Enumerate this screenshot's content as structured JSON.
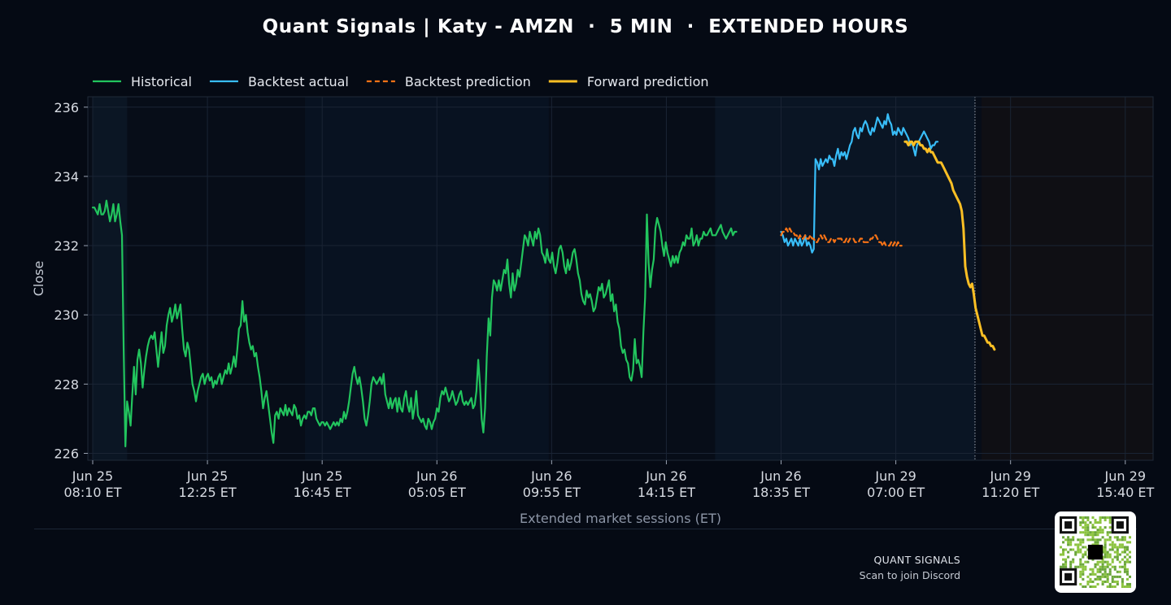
{
  "title": "Quant Signals | Katy - AMZN  ·  5 MIN  ·  EXTENDED HOURS",
  "footer": {
    "brand": "QUANT SIGNALS",
    "subtitle": "Scan to join Discord"
  },
  "colors": {
    "background": "#050a14",
    "historical": "#22c55e",
    "backtest_actual": "#38bdf8",
    "backtest_prediction": "#f97316",
    "forward_prediction": "#fbbf24"
  },
  "chart_data": {
    "type": "line",
    "xlabel": "Extended market sessions (ET)",
    "ylabel": "Close",
    "ylim": [
      225.8,
      236.3
    ],
    "yticks": [
      226,
      228,
      230,
      232,
      234,
      236
    ],
    "xlim": [
      0,
      184
    ],
    "xticks": [
      {
        "i": 0,
        "line1": "Jun 25",
        "line2": "08:10 ET"
      },
      {
        "i": 20,
        "line1": "Jun 25",
        "line2": "12:25 ET"
      },
      {
        "i": 40,
        "line1": "Jun 25",
        "line2": "16:45 ET"
      },
      {
        "i": 60,
        "line1": "Jun 26",
        "line2": "05:05 ET"
      },
      {
        "i": 80,
        "line1": "Jun 26",
        "line2": "09:55 ET"
      },
      {
        "i": 100,
        "line1": "Jun 26",
        "line2": "14:15 ET"
      },
      {
        "i": 120,
        "line1": "Jun 26",
        "line2": "18:35 ET"
      },
      {
        "i": 140,
        "line1": "Jun 29",
        "line2": "07:00 ET"
      },
      {
        "i": 160,
        "line1": "Jun 29",
        "line2": "11:20 ET"
      },
      {
        "i": 180,
        "line1": "Jun 29",
        "line2": "15:40 ET"
      }
    ],
    "grid": true,
    "legend_position": "top-left",
    "series": [
      {
        "name": "Historical",
        "style": "solid",
        "x0": 0,
        "dx": 0.3,
        "values": [
          233.1,
          233.1,
          233.0,
          232.9,
          233.2,
          232.9,
          232.9,
          233.0,
          233.3,
          233.0,
          232.7,
          232.9,
          233.2,
          232.7,
          232.9,
          233.2,
          232.7,
          232.3,
          229.0,
          226.2,
          227.5,
          227.2,
          226.8,
          227.7,
          228.5,
          227.7,
          228.7,
          229.0,
          228.6,
          227.9,
          228.4,
          228.8,
          229.1,
          229.3,
          229.4,
          229.3,
          229.5,
          229.0,
          228.5,
          229.0,
          229.5,
          228.9,
          229.1,
          229.7,
          230.0,
          230.2,
          229.8,
          230.0,
          230.3,
          229.9,
          230.1,
          230.3,
          229.6,
          229.0,
          228.8,
          229.2,
          229.0,
          228.5,
          228.0,
          227.8,
          227.5,
          227.8,
          228.0,
          228.2,
          228.3,
          228.0,
          228.2,
          228.3,
          228.1,
          228.2,
          227.9,
          228.1,
          228.0,
          228.2,
          228.3,
          228.0,
          228.2,
          228.4,
          228.3,
          228.6,
          228.3,
          228.5,
          228.8,
          228.5,
          229.0,
          229.6,
          229.7,
          230.4,
          229.8,
          230.0,
          229.5,
          229.2,
          229.0,
          229.1,
          228.8,
          228.9,
          228.5,
          228.2,
          227.8,
          227.3,
          227.6,
          227.8,
          227.4,
          227.0,
          226.6,
          226.3,
          227.1,
          227.2,
          227.0,
          227.3,
          227.2,
          227.1,
          227.4,
          227.1,
          227.3,
          227.2,
          227.1,
          227.4,
          227.3,
          227.0,
          227.1,
          226.8,
          227.0,
          227.1,
          227.0,
          227.2,
          227.2,
          227.1,
          227.3,
          227.3,
          227.0,
          226.9,
          226.8,
          226.9,
          226.9,
          226.8,
          226.9,
          226.8,
          226.7,
          226.8,
          226.9,
          226.8,
          226.9,
          226.8,
          227.0,
          226.9,
          227.2,
          227.0,
          227.2,
          227.5,
          227.9,
          228.3,
          228.5,
          228.2,
          228.0,
          228.2,
          227.9,
          227.5,
          227.0,
          226.8,
          227.1,
          227.5,
          228.0,
          228.2,
          228.1,
          228.0,
          228.1,
          228.2,
          228.0,
          228.3,
          227.7,
          227.5,
          227.3,
          227.6,
          227.3,
          227.5,
          227.6,
          227.2,
          227.6,
          227.3,
          227.2,
          227.6,
          227.8,
          227.4,
          227.2,
          227.6,
          227.0,
          227.3,
          227.8,
          227.1,
          227.0,
          226.9,
          227.0,
          226.8,
          226.7,
          227.0,
          226.9,
          226.7,
          226.9,
          227.0,
          227.3,
          227.2,
          227.6,
          227.8,
          227.7,
          227.9,
          227.7,
          227.5,
          227.6,
          227.8,
          227.6,
          227.4,
          227.5,
          227.7,
          227.8,
          227.5,
          227.4,
          227.5,
          227.4,
          227.5,
          227.6,
          227.3,
          227.4,
          227.8,
          228.7,
          228.0,
          227.0,
          226.6,
          227.3,
          228.8,
          229.9,
          229.4,
          230.5,
          231.0,
          230.9,
          230.7,
          231.0,
          230.7,
          231.0,
          231.3,
          231.2,
          231.6,
          230.9,
          230.5,
          231.2,
          230.7,
          230.9,
          231.3,
          231.1,
          231.5,
          231.9,
          232.3,
          232.2,
          232.0,
          232.4,
          232.2,
          232.0,
          232.4,
          232.2,
          232.5,
          232.3,
          231.8,
          231.7,
          231.5,
          231.9,
          231.6,
          231.5,
          231.8,
          231.4,
          231.2,
          231.5,
          231.9,
          232.0,
          231.8,
          231.4,
          231.2,
          231.6,
          231.3,
          231.5,
          231.8,
          231.9,
          231.6,
          231.2,
          231.0,
          230.6,
          230.4,
          230.3,
          230.7,
          230.5,
          230.6,
          230.4,
          230.1,
          230.2,
          230.5,
          230.8,
          230.7,
          230.9,
          230.5,
          230.6,
          230.8,
          231.0,
          230.4,
          230.6,
          230.1,
          230.3,
          229.8,
          229.6,
          229.1,
          228.9,
          229.0,
          228.7,
          228.6,
          228.2,
          228.1,
          228.4,
          229.3,
          228.6,
          228.7,
          228.5,
          228.2,
          229.5,
          230.5,
          232.9,
          231.5,
          230.8,
          231.3,
          231.6,
          232.5,
          232.8,
          232.6,
          232.4,
          232.0,
          231.7,
          232.1,
          231.8,
          231.6,
          231.4,
          231.7,
          231.5,
          231.7,
          231.5,
          231.8,
          231.9,
          232.1,
          232.0,
          232.3,
          232.2,
          232.2,
          232.5,
          232.0,
          232.1,
          232.3,
          232.0,
          232.2,
          232.2,
          232.4,
          232.3,
          232.3,
          232.4,
          232.5,
          232.3,
          232.3,
          232.3,
          232.4,
          232.5,
          232.6,
          232.4,
          232.3,
          232.2,
          232.3,
          232.4,
          232.5,
          232.3,
          232.4,
          232.4
        ]
      },
      {
        "name": "Backtest actual",
        "style": "solid",
        "x0": 120,
        "dx": 0.3,
        "values": [
          232.4,
          232.3,
          232.1,
          232.2,
          232.0,
          232.1,
          232.2,
          232.0,
          232.2,
          232.1,
          232.0,
          232.2,
          232.0,
          232.1,
          232.3,
          232.0,
          232.1,
          232.0,
          231.8,
          231.9,
          234.5,
          234.4,
          234.2,
          234.5,
          234.3,
          234.4,
          234.5,
          234.4,
          234.6,
          234.5,
          234.5,
          234.3,
          234.6,
          234.8,
          234.5,
          234.7,
          234.6,
          234.7,
          234.5,
          234.7,
          234.9,
          235.0,
          235.3,
          235.4,
          235.2,
          235.1,
          235.4,
          235.3,
          235.5,
          235.6,
          235.5,
          235.3,
          235.2,
          235.4,
          235.3,
          235.5,
          235.7,
          235.6,
          235.5,
          235.4,
          235.6,
          235.5,
          235.8,
          235.6,
          235.5,
          235.2,
          235.3,
          235.2,
          235.4,
          235.3,
          235.2,
          235.4,
          235.3,
          235.2,
          235.1,
          234.9,
          235.0,
          234.8,
          234.6,
          234.9,
          235.0,
          235.1,
          235.2,
          235.3,
          235.2,
          235.1,
          235.0,
          234.8,
          234.9,
          234.9,
          235.0,
          235.0
        ]
      },
      {
        "name": "Backtest prediction",
        "style": "dashed",
        "x0": 120,
        "dx": 0.3,
        "values": [
          232.3,
          232.4,
          232.4,
          232.5,
          232.4,
          232.5,
          232.4,
          232.4,
          232.3,
          232.3,
          232.2,
          232.3,
          232.2,
          232.2,
          232.3,
          232.2,
          232.2,
          232.3,
          232.2,
          232.2,
          232.1,
          232.1,
          232.2,
          232.3,
          232.2,
          232.3,
          232.2,
          232.1,
          232.1,
          232.2,
          232.2,
          232.1,
          232.2,
          232.2,
          232.2,
          232.2,
          232.1,
          232.1,
          232.2,
          232.1,
          232.2,
          232.2,
          232.2,
          232.1,
          232.1,
          232.1,
          232.2,
          232.2,
          232.1,
          232.1,
          232.1,
          232.1,
          232.2,
          232.2,
          232.3,
          232.3,
          232.2,
          232.1,
          232.1,
          232.0,
          232.1,
          232.0,
          232.0,
          232.0,
          232.1,
          232.0,
          232.1,
          232.0,
          232.1,
          232.0,
          232.0
        ]
      },
      {
        "name": "Forward prediction",
        "style": "solid",
        "x0": 141.6,
        "dx": 0.3,
        "values": [
          235.0,
          235.0,
          234.9,
          235.0,
          235.0,
          234.9,
          235.0,
          235.0,
          235.0,
          234.9,
          234.9,
          234.8,
          234.8,
          234.7,
          234.8,
          234.7,
          234.7,
          234.6,
          234.5,
          234.4,
          234.4,
          234.4,
          234.3,
          234.2,
          234.1,
          234.0,
          233.9,
          233.8,
          233.6,
          233.5,
          233.4,
          233.3,
          233.2,
          233.0,
          232.5,
          231.4,
          231.1,
          230.9,
          230.8,
          230.9,
          230.6,
          230.2,
          230.0,
          229.8,
          229.6,
          229.4,
          229.4,
          229.3,
          229.2,
          229.2,
          229.1,
          229.1,
          229.0
        ]
      }
    ],
    "forecast_start_x": 153.8
  }
}
